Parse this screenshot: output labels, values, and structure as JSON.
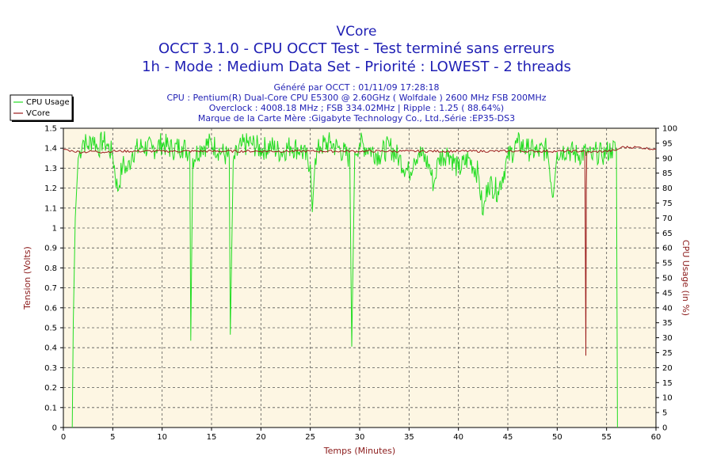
{
  "chart_data": {
    "type": "line",
    "title_lines": [
      "VCore",
      "OCCT 3.1.0 - CPU OCCT Test - Test terminé sans erreurs",
      "1h - Mode : Medium Data Set - Priorité : LOWEST - 2 threads"
    ],
    "info_lines": [
      "Généré par OCCT : 01/11/09 17:28:18",
      "CPU : Pentium(R) Dual-Core CPU E5300 @ 2.60GHz ( Wolfdale ) 2600 MHz FSB 200MHz",
      "Overclock : 4008.18 MHz ; FSB 334.02MHz | Ripple : 1.25 ( 88.64%)",
      "Marque de la Carte Mère :Gigabyte Technology Co., Ltd.,Série :EP35-DS3"
    ],
    "xlabel": "Temps (Minutes)",
    "ylabel_left": "Tension (Volts)",
    "ylabel_right": "CPU Usage (in %)",
    "xlim": [
      0,
      60
    ],
    "ylim_left": [
      0,
      1.5
    ],
    "ylim_right": [
      0,
      100
    ],
    "x_ticks": [
      "0",
      "5",
      "10",
      "15",
      "20",
      "25",
      "30",
      "35",
      "40",
      "45",
      "50",
      "55",
      "60"
    ],
    "y_left_ticks": [
      "0",
      "0.1",
      "0.2",
      "0.3",
      "0.4",
      "0.5",
      "0.6",
      "0.7",
      "0.8",
      "0.9",
      "1",
      "1.1",
      "1.2",
      "1.3",
      "1.4",
      "1.5"
    ],
    "y_right_ticks": [
      "0",
      "5",
      "10",
      "15",
      "20",
      "25",
      "30",
      "35",
      "40",
      "45",
      "50",
      "55",
      "60",
      "65",
      "70",
      "75",
      "80",
      "85",
      "90",
      "95",
      "100"
    ],
    "grid": true,
    "legend_position": "top-left",
    "series": [
      {
        "name": "CPU Usage",
        "axis": "right",
        "color": "#22dd22",
        "points": [
          [
            0.9,
            0
          ],
          [
            1.0,
            35
          ],
          [
            1.2,
            70
          ],
          [
            1.5,
            90
          ],
          [
            2.0,
            96
          ],
          [
            2.5,
            94
          ],
          [
            3.0,
            97
          ],
          [
            3.5,
            93
          ],
          [
            4.0,
            96
          ],
          [
            4.5,
            94
          ],
          [
            5.0,
            91
          ],
          [
            5.5,
            79
          ],
          [
            6.0,
            88
          ],
          [
            6.5,
            86
          ],
          [
            7.0,
            92
          ],
          [
            8.0,
            94
          ],
          [
            9.0,
            93
          ],
          [
            10.0,
            95
          ],
          [
            11.0,
            93
          ],
          [
            12.0,
            94
          ],
          [
            12.8,
            92
          ],
          [
            12.9,
            29
          ],
          [
            13.1,
            90
          ],
          [
            14.0,
            94
          ],
          [
            15.0,
            95
          ],
          [
            16.0,
            92
          ],
          [
            16.8,
            90
          ],
          [
            16.9,
            31
          ],
          [
            17.2,
            89
          ],
          [
            18.0,
            94
          ],
          [
            19.0,
            95
          ],
          [
            20.0,
            93
          ],
          [
            21.0,
            94
          ],
          [
            22.0,
            92
          ],
          [
            23.0,
            94
          ],
          [
            24.0,
            93
          ],
          [
            25.0,
            88
          ],
          [
            25.2,
            72
          ],
          [
            25.5,
            90
          ],
          [
            26.0,
            94
          ],
          [
            27.0,
            95
          ],
          [
            28.0,
            93
          ],
          [
            29.0,
            90
          ],
          [
            29.2,
            27
          ],
          [
            29.5,
            92
          ],
          [
            30.0,
            95
          ],
          [
            31.0,
            93
          ],
          [
            32.0,
            91
          ],
          [
            33.0,
            94
          ],
          [
            34.0,
            90
          ],
          [
            35.0,
            85
          ],
          [
            35.5,
            90
          ],
          [
            36.0,
            92
          ],
          [
            37.0,
            88
          ],
          [
            37.5,
            81
          ],
          [
            38.0,
            90
          ],
          [
            39.0,
            92
          ],
          [
            40.0,
            86
          ],
          [
            41.0,
            90
          ],
          [
            42.0,
            85
          ],
          [
            42.5,
            71
          ],
          [
            43.0,
            82
          ],
          [
            44.0,
            79
          ],
          [
            45.0,
            90
          ],
          [
            46.0,
            95
          ],
          [
            47.0,
            93
          ],
          [
            48.0,
            92
          ],
          [
            49.0,
            93
          ],
          [
            49.6,
            77
          ],
          [
            50.0,
            92
          ],
          [
            51.0,
            93
          ],
          [
            52.0,
            91
          ],
          [
            53.0,
            92
          ],
          [
            53.5,
            90
          ],
          [
            54.0,
            92
          ],
          [
            54.5,
            91
          ],
          [
            55.0,
            92
          ],
          [
            55.5,
            93
          ],
          [
            56.0,
            93
          ],
          [
            56.1,
            0
          ]
        ]
      },
      {
        "name": "VCore",
        "axis": "left",
        "color": "#9b1c1c",
        "points": [
          [
            0,
            1.395
          ],
          [
            0.5,
            1.39
          ],
          [
            1.0,
            1.385
          ],
          [
            2.0,
            1.38
          ],
          [
            3.0,
            1.385
          ],
          [
            4.0,
            1.38
          ],
          [
            5.0,
            1.385
          ],
          [
            10.0,
            1.385
          ],
          [
            15.0,
            1.385
          ],
          [
            20.0,
            1.385
          ],
          [
            25.0,
            1.385
          ],
          [
            30.0,
            1.385
          ],
          [
            35.0,
            1.385
          ],
          [
            40.0,
            1.385
          ],
          [
            45.0,
            1.385
          ],
          [
            50.0,
            1.385
          ],
          [
            52.8,
            1.385
          ],
          [
            52.85,
            0.88
          ],
          [
            52.9,
            0.36
          ],
          [
            52.95,
            1.2
          ],
          [
            53.0,
            1.38
          ],
          [
            55.0,
            1.385
          ],
          [
            56.0,
            1.39
          ],
          [
            56.5,
            1.405
          ],
          [
            58.0,
            1.405
          ],
          [
            60.0,
            1.395
          ]
        ]
      }
    ]
  }
}
